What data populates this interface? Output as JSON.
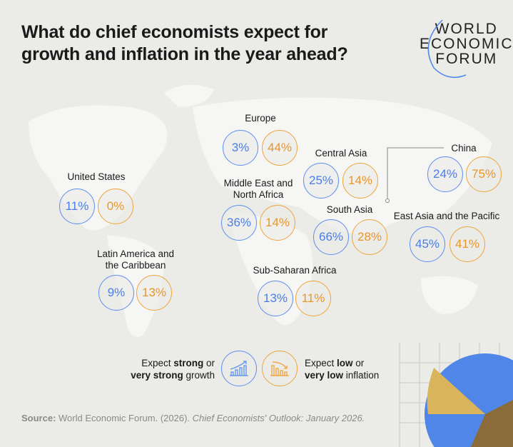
{
  "title": [
    "What do chief economists expect for",
    "growth and inflation in the year ahead?"
  ],
  "logo": [
    "WORLD",
    "ECONOMIC",
    "FORUM"
  ],
  "colors": {
    "growth": "#5d8fee",
    "inflation": "#f0a43a",
    "background": "#ebebe8"
  },
  "regions": [
    {
      "name": "Europe",
      "growth": "3%",
      "inflation": "44%"
    },
    {
      "name": "United States",
      "growth": "11%",
      "inflation": "0%"
    },
    {
      "name": "Middle East and North Africa",
      "growth": "36%",
      "inflation": "14%"
    },
    {
      "name": "Central Asia",
      "growth": "25%",
      "inflation": "14%"
    },
    {
      "name": "China",
      "growth": "24%",
      "inflation": "75%"
    },
    {
      "name": "South Asia",
      "growth": "66%",
      "inflation": "28%"
    },
    {
      "name": "East Asia and the Pacific",
      "growth": "45%",
      "inflation": "41%"
    },
    {
      "name": "Latin America and the Caribbean",
      "growth": "9%",
      "inflation": "13%"
    },
    {
      "name": "Sub-Saharan Africa",
      "growth": "13%",
      "inflation": "11%"
    }
  ],
  "legend": {
    "growth": {
      "pre": "Expect ",
      "bold1": "strong",
      "mid": " or",
      "bold2": "very strong",
      "post": " growth",
      "icon": "rising-bar-chart-icon"
    },
    "inflation": {
      "pre": "Expect ",
      "bold1": "low",
      "mid": " or",
      "bold2": "very low",
      "post": " inflation",
      "icon": "falling-bar-chart-icon"
    }
  },
  "source": {
    "label": "Source:",
    "text": " World Economic Forum. (2026). ",
    "italic": "Chief Economists' Outlook: January 2026."
  }
}
